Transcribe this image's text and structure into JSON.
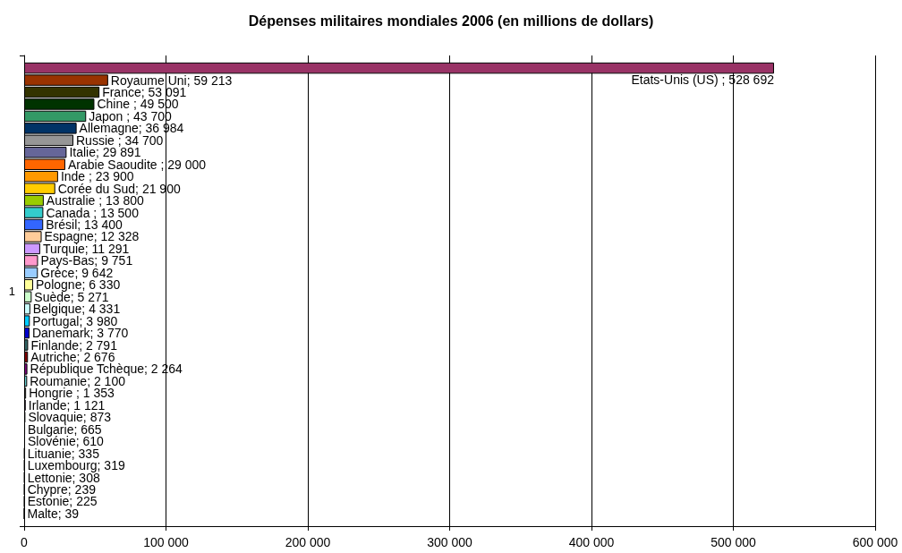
{
  "chart_data": {
    "type": "bar",
    "orientation": "horizontal",
    "title": "Dépenses militaires mondiales 2006 (en millions de dollars)",
    "categories": [
      "1"
    ],
    "xlim": [
      0,
      600000
    ],
    "xticks": [
      0,
      {
        "value": 100000,
        "label": "100 000"
      },
      {
        "value": 200000,
        "label": "200 000"
      },
      {
        "value": 300000,
        "label": "300 000"
      },
      {
        "value": 400000,
        "label": "400 000"
      },
      {
        "value": 500000,
        "label": "500 000"
      },
      {
        "value": 600000,
        "label": "600 000"
      }
    ],
    "grid": "x",
    "series": [
      {
        "color": "#993366",
        "values": [
          528692
        ],
        "value_labels": [
          "Etats-Unis (US) ; 528 692"
        ]
      },
      {
        "color": "#993300",
        "values": [
          59213
        ],
        "value_labels": [
          "Royaume Uni; 59 213"
        ]
      },
      {
        "color": "#333300",
        "values": [
          53091
        ],
        "value_labels": [
          "France; 53 091"
        ]
      },
      {
        "color": "#003300",
        "values": [
          49500
        ],
        "value_labels": [
          "Chine ; 49 500"
        ]
      },
      {
        "color": "#339966",
        "values": [
          43700
        ],
        "value_labels": [
          "Japon ; 43 700"
        ]
      },
      {
        "color": "#003366",
        "values": [
          36984
        ],
        "value_labels": [
          "Allemagne; 36 984"
        ]
      },
      {
        "color": "#969696",
        "values": [
          34700
        ],
        "value_labels": [
          "Russie ; 34 700"
        ]
      },
      {
        "color": "#666699",
        "values": [
          29891
        ],
        "value_labels": [
          "Italie; 29 891"
        ]
      },
      {
        "color": "#ff6600",
        "values": [
          29000
        ],
        "value_labels": [
          "Arabie Saoudite ; 29 000"
        ]
      },
      {
        "color": "#ff9900",
        "values": [
          23900
        ],
        "value_labels": [
          "Inde ; 23 900"
        ]
      },
      {
        "color": "#ffcc00",
        "values": [
          21900
        ],
        "value_labels": [
          "Corée du Sud; 21 900"
        ]
      },
      {
        "color": "#99cc00",
        "values": [
          13800
        ],
        "value_labels": [
          "Australie ; 13 800"
        ]
      },
      {
        "color": "#33cccc",
        "values": [
          13500
        ],
        "value_labels": [
          "Canada ; 13 500"
        ]
      },
      {
        "color": "#3366ff",
        "values": [
          13400
        ],
        "value_labels": [
          "Brésil; 13 400"
        ]
      },
      {
        "color": "#ffcc99",
        "values": [
          12328
        ],
        "value_labels": [
          "Espagne; 12 328"
        ]
      },
      {
        "color": "#cc99ff",
        "values": [
          11291
        ],
        "value_labels": [
          "Turquie; 11 291"
        ]
      },
      {
        "color": "#ff99cc",
        "values": [
          9751
        ],
        "value_labels": [
          "Pays-Bas; 9 751"
        ]
      },
      {
        "color": "#99ccff",
        "values": [
          9642
        ],
        "value_labels": [
          "Grèce; 9 642"
        ]
      },
      {
        "color": "#ffff99",
        "values": [
          6330
        ],
        "value_labels": [
          "Pologne; 6 330"
        ]
      },
      {
        "color": "#ccffcc",
        "values": [
          5271
        ],
        "value_labels": [
          "Suède; 5 271"
        ]
      },
      {
        "color": "#ccffff",
        "values": [
          4331
        ],
        "value_labels": [
          "Belgique; 4 331"
        ]
      },
      {
        "color": "#00ccff",
        "values": [
          3980
        ],
        "value_labels": [
          "Portugal; 3 980"
        ]
      },
      {
        "color": "#0000cc",
        "values": [
          3770
        ],
        "value_labels": [
          "Danemark; 3 770"
        ]
      },
      {
        "color": "#336666",
        "values": [
          2791
        ],
        "value_labels": [
          "Finlande; 2 791"
        ]
      },
      {
        "color": "#800000",
        "values": [
          2676
        ],
        "value_labels": [
          "Autriche; 2 676"
        ]
      },
      {
        "color": "#800080",
        "values": [
          2264
        ],
        "value_labels": [
          "République Tchèque; 2 264"
        ]
      },
      {
        "color": "#66cccc",
        "values": [
          2100
        ],
        "value_labels": [
          "Roumanie; 2 100"
        ]
      },
      {
        "color": "#ffffcc",
        "values": [
          1353
        ],
        "value_labels": [
          "Hongrie ; 1 353"
        ]
      },
      {
        "color": "#cc66cc",
        "values": [
          1121
        ],
        "value_labels": [
          "Irlande; 1 121"
        ]
      },
      {
        "color": "#000000",
        "values": [
          873
        ],
        "value_labels": [
          "Slovaquie; 873"
        ]
      },
      {
        "color": "#000000",
        "values": [
          665
        ],
        "value_labels": [
          "Bulgarie; 665"
        ]
      },
      {
        "color": "#000000",
        "values": [
          610
        ],
        "value_labels": [
          "Slovénie; 610"
        ]
      },
      {
        "color": "#000000",
        "values": [
          335
        ],
        "value_labels": [
          "Lituanie; 335"
        ]
      },
      {
        "color": "#000000",
        "values": [
          319
        ],
        "value_labels": [
          "Luxembourg; 319"
        ]
      },
      {
        "color": "#000000",
        "values": [
          308
        ],
        "value_labels": [
          "Lettonie; 308"
        ]
      },
      {
        "color": "#000000",
        "values": [
          239
        ],
        "value_labels": [
          "Chypre; 239"
        ]
      },
      {
        "color": "#000000",
        "values": [
          225
        ],
        "value_labels": [
          "Estonie; 225"
        ]
      },
      {
        "color": "#000000",
        "values": [
          39
        ],
        "value_labels": [
          "Malte; 39"
        ]
      }
    ]
  }
}
